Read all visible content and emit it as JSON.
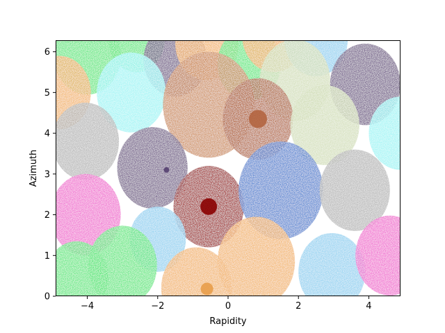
{
  "chart_data": {
    "type": "scatter",
    "title": "",
    "xlabel": "Rapidity",
    "ylabel": "Azimuth",
    "xlim": [
      -4.9,
      4.9
    ],
    "ylim": [
      0,
      6.283
    ],
    "xticks": [
      -4,
      -2,
      0,
      2,
      4
    ],
    "yticks": [
      0,
      1,
      2,
      3,
      4,
      5,
      6
    ],
    "grid": false,
    "legend": "none",
    "jet_areas": [
      {
        "x": -4.0,
        "y": 5.9,
        "r": 0.95,
        "color": "#5ee87e"
      },
      {
        "x": -2.6,
        "y": 6.3,
        "r": 0.8,
        "color": "#5ee87e"
      },
      {
        "x": -1.5,
        "y": 5.8,
        "r": 0.9,
        "color": "#6e5a85"
      },
      {
        "x": -0.6,
        "y": 6.2,
        "r": 0.9,
        "color": "#f2b46a"
      },
      {
        "x": 0.6,
        "y": 5.7,
        "r": 0.9,
        "color": "#5ee87e"
      },
      {
        "x": 1.3,
        "y": 6.4,
        "r": 0.9,
        "color": "#f2b46a"
      },
      {
        "x": 2.5,
        "y": 6.3,
        "r": 0.9,
        "color": "#8fd0f0"
      },
      {
        "x": 1.9,
        "y": 5.3,
        "r": 1.0,
        "color": "#d2deb8"
      },
      {
        "x": 3.9,
        "y": 5.2,
        "r": 1.0,
        "color": "#6e5a85"
      },
      {
        "x": -4.8,
        "y": 5.0,
        "r": 0.9,
        "color": "#f2b46a"
      },
      {
        "x": -2.75,
        "y": 5.0,
        "r": 0.98,
        "color": "#9ef5f5"
      },
      {
        "x": -0.55,
        "y": 4.7,
        "r": 1.3,
        "color": "#cd8c5c"
      },
      {
        "x": 0.85,
        "y": 4.35,
        "r": 1.0,
        "color": "#b3643f"
      },
      {
        "x": 2.75,
        "y": 4.2,
        "r": 0.98,
        "color": "#d2deb8"
      },
      {
        "x": 4.9,
        "y": 4.0,
        "r": 0.9,
        "color": "#9ef5f5"
      },
      {
        "x": -4.05,
        "y": 3.8,
        "r": 0.95,
        "color": "#b5b5b5"
      },
      {
        "x": -2.15,
        "y": 3.15,
        "r": 1.0,
        "color": "#6e5a85"
      },
      {
        "x": -0.55,
        "y": 2.2,
        "r": 1.0,
        "color": "#9b1c1c"
      },
      {
        "x": 1.5,
        "y": 2.6,
        "r": 1.2,
        "color": "#4f7fcf"
      },
      {
        "x": 3.6,
        "y": 2.6,
        "r": 1.0,
        "color": "#b5b5b5"
      },
      {
        "x": -4.05,
        "y": 2.0,
        "r": 1.0,
        "color": "#f06acf"
      },
      {
        "x": -2.0,
        "y": 1.4,
        "r": 0.8,
        "color": "#8fd0f0"
      },
      {
        "x": -3.0,
        "y": 0.75,
        "r": 0.98,
        "color": "#5ee87e"
      },
      {
        "x": -4.3,
        "y": 0.45,
        "r": 0.9,
        "color": "#5ee87e"
      },
      {
        "x": 0.8,
        "y": 0.85,
        "r": 1.1,
        "color": "#f2b46a"
      },
      {
        "x": -0.9,
        "y": 0.2,
        "r": 1.0,
        "color": "#f2b46a"
      },
      {
        "x": 2.95,
        "y": 0.6,
        "r": 0.95,
        "color": "#8fd0f0"
      },
      {
        "x": 4.6,
        "y": 1.0,
        "r": 0.98,
        "color": "#f06acf"
      }
    ],
    "jets": [
      {
        "x": -0.55,
        "y": 2.2,
        "size": 12,
        "color": "#8a0000"
      },
      {
        "x": 0.85,
        "y": 4.35,
        "size": 13,
        "color": "#b3643f"
      },
      {
        "x": -0.6,
        "y": 0.18,
        "size": 9,
        "color": "#e89d4a"
      },
      {
        "x": -1.75,
        "y": 3.1,
        "size": 4,
        "color": "#554070"
      }
    ]
  }
}
